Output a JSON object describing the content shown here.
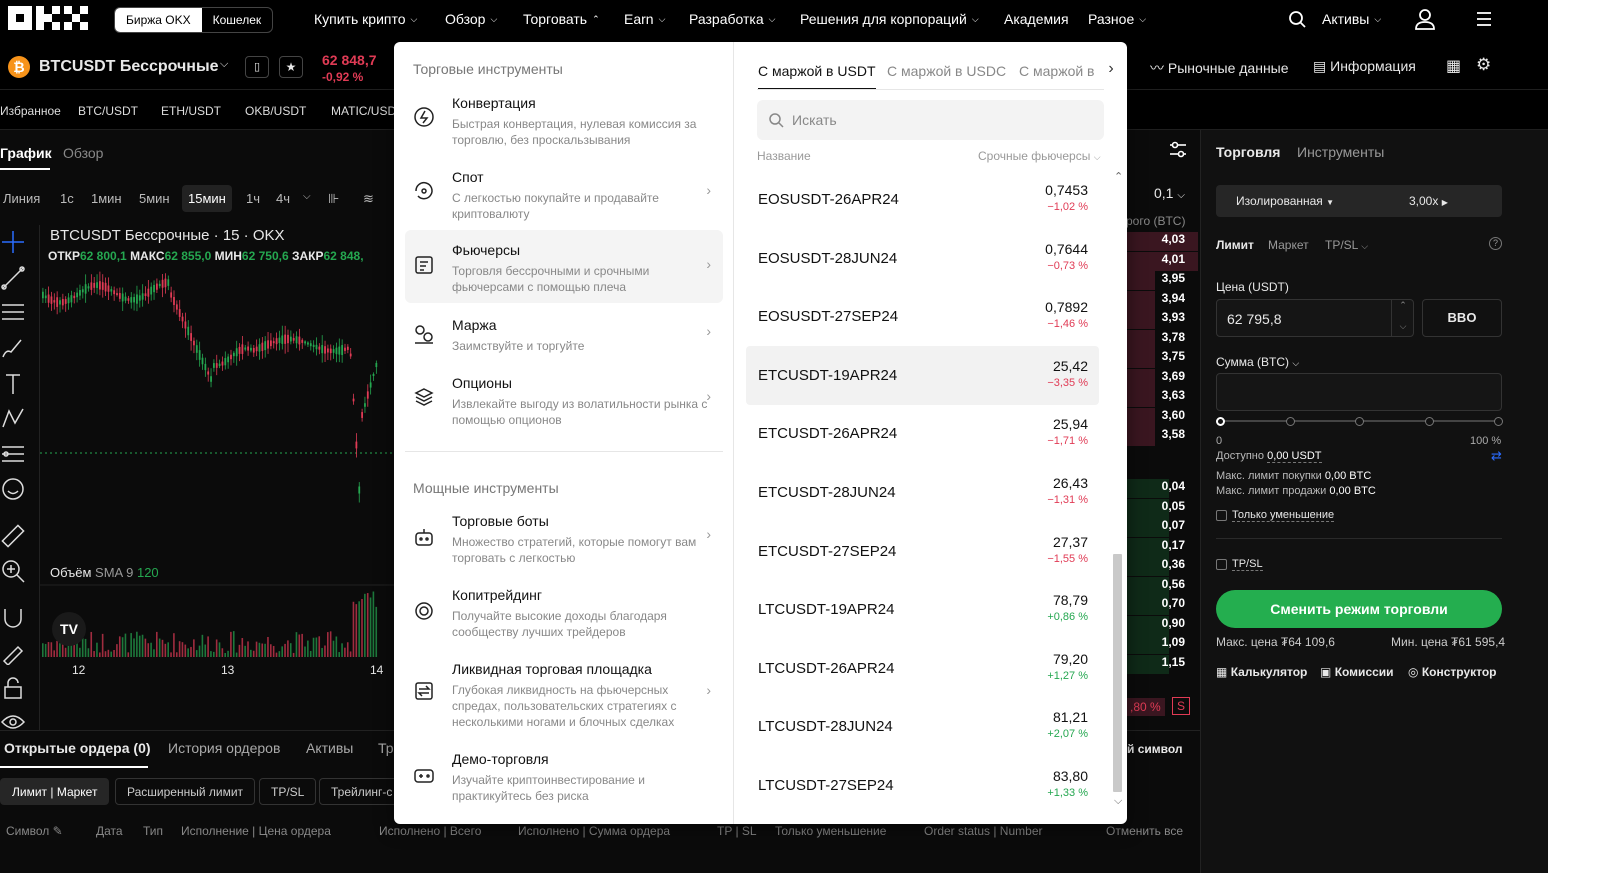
{
  "nav": {
    "segments": [
      "Биржа OKX",
      "Кошелек"
    ],
    "items": [
      "Купить крипто",
      "Обзор",
      "Торговать",
      "Earn",
      "Разработка",
      "Решения для корпораций",
      "Академия",
      "Разное"
    ],
    "assets": "Активы"
  },
  "ticker": {
    "pair": "BTCUSDT Бессрочные",
    "price": "62 848,7",
    "change": "-0,92 %",
    "market_data": "Рыночные данные",
    "info": "Информация"
  },
  "favorites": [
    "Избранное",
    "BTC/USDT",
    "ETH/USDT",
    "OKB/USDT",
    "MATIC/USD"
  ],
  "chart": {
    "tabs": [
      "График",
      "Обзор"
    ],
    "timeframes": [
      "Линия",
      "1с",
      "1мин",
      "5мин",
      "15мин",
      "1ч",
      "4ч"
    ],
    "title": "BTCUSDT Бессрочные · 15 · OKX",
    "ohlc_open_label": "ОТКР",
    "ohlc_open": "62 800,1",
    "ohlc_high_label": "МАКС",
    "ohlc_high": "62 855,0",
    "ohlc_low_label": "МИН",
    "ohlc_low": "62 750,6",
    "ohlc_close_label": "ЗАКР",
    "ohlc_close": "62 848,",
    "volume_label": "Объём",
    "sma_label": "SMA 9",
    "sma_value": "120",
    "dates": [
      "12",
      "13",
      "14"
    ]
  },
  "orderbook": {
    "size": "0,1",
    "header": "рого (BTC)",
    "asks": [
      "4,03",
      "4,01",
      "3,95",
      "3,94",
      "3,93",
      "3,78",
      "3,75",
      "3,69",
      "3,63",
      "3,60",
      "3,58"
    ],
    "bids": [
      "0,04",
      "0,05",
      "0,07",
      "0,17",
      "0,36",
      "0,56",
      "0,70",
      "0,90",
      "1,09",
      "1,15"
    ],
    "footer_pct": ",80 %",
    "footer_s": "S"
  },
  "trade": {
    "tabs": [
      "Торговля",
      "Инструменты"
    ],
    "mode": "Изолированная",
    "leverage": "3,00x",
    "order_types": [
      "Лимит",
      "Маркет",
      "TP/SL"
    ],
    "price_label": "Цена (USDT)",
    "price_value": "62 795,8",
    "bbo": "BBO",
    "amount_label": "Сумма (BTC)",
    "slider_min": "0",
    "slider_max": "100 %",
    "available": "Доступно",
    "available_value": "0,00 USDT",
    "max_buy": "Макс. лимит покупки",
    "max_buy_value": "0,00 BTC",
    "max_sell": "Макс. лимит продажи",
    "max_sell_value": "0,00 BTC",
    "reduce_only": "Только уменьшение",
    "tpsl": "TP/SL",
    "switch_button": "Сменить режим торговли",
    "max_price": "Макс. цена ₮64 109,6",
    "min_price": "Мин. цена ₮61 595,4",
    "tools": [
      "Калькулятор",
      "Комиссии",
      "Конструктор"
    ]
  },
  "bottom": {
    "tabs": [
      "Открытые ордера (0)",
      "История ордеров",
      "Активы",
      "Тр"
    ],
    "right_label": "й символ",
    "chips": [
      "Лимит | Маркет",
      "Расширенный лимит",
      "TP/SL",
      "Трейлинг-с"
    ],
    "columns": [
      "Символ",
      "Дата",
      "Тип",
      "Исполнение | Цена ордера",
      "Исполнено | Всего",
      "Исполнено | Сумма ордера",
      "TP | SL",
      "Только уменьшение",
      "Order status | Number",
      "Отменить все"
    ]
  },
  "menu": {
    "section1": "Торговые инструменты",
    "section2": "Мощные инструменты",
    "items1": [
      {
        "title": "Конвертация",
        "desc": "Быстрая конвертация, нулевая комиссия за торговлю, без проскальзывания"
      },
      {
        "title": "Спот",
        "desc": "С легкостью покупайте и продавайте криптовалюту"
      },
      {
        "title": "Фьючерсы",
        "desc": "Торговля бессрочными и срочными фьючерсами с помощью плеча"
      },
      {
        "title": "Маржа",
        "desc": "Заимствуйте и торгуйте"
      },
      {
        "title": "Опционы",
        "desc": "Извлекайте выгоду из волатильности рынка с помощью опционов"
      }
    ],
    "items2": [
      {
        "title": "Торговые боты",
        "desc": "Множество стратегий, которые помогут вам торговать с легкостью"
      },
      {
        "title": "Копитрейдинг",
        "desc": "Получайте высокие доходы благодаря сообществу лучших трейдеров"
      },
      {
        "title": "Ликвидная торговая площадка",
        "desc": "Глубокая ликвидность на фьючерсных спредах, пользовательских стратегиях с несколькими ногами и блочных сделках"
      },
      {
        "title": "Демо-торговля",
        "desc": "Изучайте криптоинвестирование и практикуйтесь без риска"
      }
    ],
    "right_tabs": [
      "С маржой в USDT",
      "С маржой в USDC",
      "С маржой в"
    ],
    "search_placeholder": "Искать",
    "col_name": "Название",
    "col_type": "Срочные фьючерсы",
    "futures": [
      {
        "name": "EOSUSDT-26APR24",
        "price": "0,7453",
        "change": "−1,02 %",
        "up": false
      },
      {
        "name": "EOSUSDT-28JUN24",
        "price": "0,7644",
        "change": "−0,73 %",
        "up": false
      },
      {
        "name": "EOSUSDT-27SEP24",
        "price": "0,7892",
        "change": "−1,46 %",
        "up": false
      },
      {
        "name": "ETCUSDT-19APR24",
        "price": "25,42",
        "change": "−3,35 %",
        "up": false
      },
      {
        "name": "ETCUSDT-26APR24",
        "price": "25,94",
        "change": "−1,71 %",
        "up": false
      },
      {
        "name": "ETCUSDT-28JUN24",
        "price": "26,43",
        "change": "−1,31 %",
        "up": false
      },
      {
        "name": "ETCUSDT-27SEP24",
        "price": "27,37",
        "change": "−1,55 %",
        "up": false
      },
      {
        "name": "LTCUSDT-19APR24",
        "price": "78,79",
        "change": "+0,86 %",
        "up": true
      },
      {
        "name": "LTCUSDT-26APR24",
        "price": "79,20",
        "change": "+1,27 %",
        "up": true
      },
      {
        "name": "LTCUSDT-28JUN24",
        "price": "81,21",
        "change": "+2,07 %",
        "up": true
      },
      {
        "name": "LTCUSDT-27SEP24",
        "price": "83,80",
        "change": "+1,33 %",
        "up": true
      }
    ]
  },
  "colors": {
    "green": "#25a750",
    "red": "#e03b55",
    "accent": "#24ae4f"
  }
}
